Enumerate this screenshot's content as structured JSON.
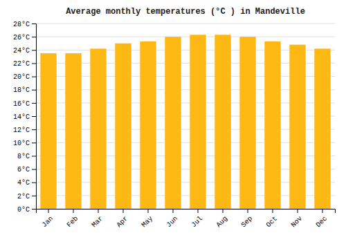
{
  "chart_data": {
    "type": "bar",
    "title": "Average monthly temperatures (°C ) in Mandeville",
    "categories": [
      "Jan",
      "Feb",
      "Mar",
      "Apr",
      "May",
      "Jun",
      "Jul",
      "Aug",
      "Sep",
      "Oct",
      "Nov",
      "Dec"
    ],
    "values": [
      23.5,
      23.5,
      24.2,
      25.0,
      25.3,
      26.0,
      26.3,
      26.3,
      26.0,
      25.3,
      24.8,
      24.2
    ],
    "color": "#FDB813",
    "ylim": [
      0,
      28
    ],
    "yticks": [
      {
        "value": 0,
        "label": "0°C"
      },
      {
        "value": 2,
        "label": "2°C"
      },
      {
        "value": 4,
        "label": "4°C"
      },
      {
        "value": 6,
        "label": "6°C"
      },
      {
        "value": 8,
        "label": "8°C"
      },
      {
        "value": 10,
        "label": "10°C"
      },
      {
        "value": 12,
        "label": "12°C"
      },
      {
        "value": 14,
        "label": "14°C"
      },
      {
        "value": 16,
        "label": "16°C"
      },
      {
        "value": 18,
        "label": "18°C"
      },
      {
        "value": 20,
        "label": "20°C"
      },
      {
        "value": 22,
        "label": "22°C"
      },
      {
        "value": 24,
        "label": "24°C"
      },
      {
        "value": 26,
        "label": "26°C"
      },
      {
        "value": 28,
        "label": "28°C"
      }
    ],
    "grid": true
  }
}
